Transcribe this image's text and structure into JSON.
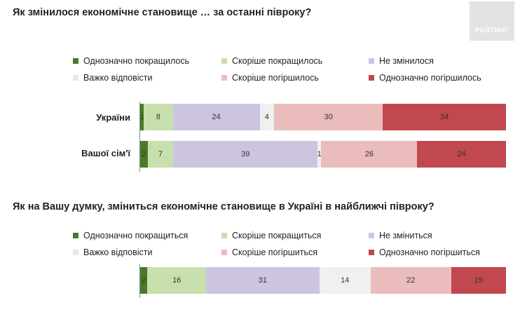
{
  "logo": {
    "text": "РЕЙТИНГ"
  },
  "chart_data": [
    {
      "type": "bar",
      "orientation": "horizontal-stacked-100",
      "title": "Як змінилося економічне становище … за останні півроку?",
      "categories": [
        "України",
        "Вашої сім'ї"
      ],
      "legend_position": "top",
      "series": [
        {
          "name": "Однозначно покращилось",
          "color": "#4a7a28",
          "values": [
            1,
            2
          ]
        },
        {
          "name": "Скоріше покращилось",
          "color": "#c8dfae",
          "values": [
            8,
            7
          ]
        },
        {
          "name": "Не змінилося",
          "color": "#cdc4e0",
          "values": [
            24,
            39
          ]
        },
        {
          "name": "Важко відповісти",
          "color": "#f0f0f0",
          "values": [
            4,
            1
          ]
        },
        {
          "name": "Скоріше погіршилось",
          "color": "#ebbcbc",
          "values": [
            30,
            26
          ]
        },
        {
          "name": "Однозначно погіршилось",
          "color": "#c0484e",
          "values": [
            34,
            24
          ]
        }
      ]
    },
    {
      "type": "bar",
      "orientation": "horizontal-stacked-100",
      "title": "Як на Вашу думку, зміниться економічне становище в Україні в найближчі півроку?",
      "categories": [
        ""
      ],
      "legend_position": "top",
      "series": [
        {
          "name": "Однозначно покращиться",
          "color": "#4a7a28",
          "values": [
            2
          ]
        },
        {
          "name": "Скоріше покращиться",
          "color": "#c8dfae",
          "values": [
            16
          ]
        },
        {
          "name": "Не зміниться",
          "color": "#cdc4e0",
          "values": [
            31
          ]
        },
        {
          "name": "Важко відповісти",
          "color": "#f0f0f0",
          "values": [
            14
          ]
        },
        {
          "name": "Скоріше погіршиться",
          "color": "#ebbcbc",
          "values": [
            22
          ]
        },
        {
          "name": "Однозначно погіршиться",
          "color": "#c0484e",
          "values": [
            15
          ]
        }
      ]
    }
  ]
}
